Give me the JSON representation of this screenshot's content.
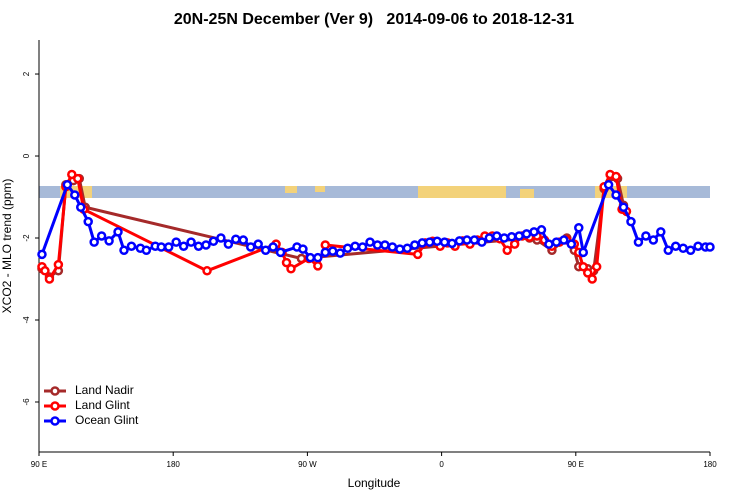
{
  "chart_data": {
    "type": "line",
    "title": "20N-25N December (Ver 9)   2014-09-06 to 2018-12-31",
    "xlabel": "Longitude",
    "ylabel": "XCO2 - MLO trend (ppm)",
    "xlim": [
      90,
      540
    ],
    "ylim": [
      -7.22,
      2.83
    ],
    "xticks": [
      {
        "value": 90,
        "label": "90 E"
      },
      {
        "value": 180,
        "label": "180"
      },
      {
        "value": 270,
        "label": "90 W"
      },
      {
        "value": 360,
        "label": "0"
      },
      {
        "value": 450,
        "label": "90 E"
      },
      {
        "value": 540,
        "label": "180"
      }
    ],
    "yticks": [
      -6,
      -4,
      -2,
      0,
      2
    ],
    "legend": "bottom-left",
    "series": [
      {
        "name": "Land Nadir",
        "color": "#a52a2a",
        "x": [
          92,
          97,
          103,
          108,
          113,
          117,
          121,
          266,
          419,
          424,
          434,
          444,
          449,
          452,
          458,
          462,
          469,
          474,
          478,
          482
        ],
        "values": [
          -2.75,
          -2.95,
          -2.8,
          -0.7,
          -0.6,
          -0.55,
          -1.25,
          -2.5,
          -2.0,
          -2.05,
          -2.3,
          -2.0,
          -2.3,
          -2.7,
          -2.75,
          -2.8,
          -0.8,
          -0.5,
          -0.55,
          -1.2
        ]
      },
      {
        "name": "Land Glint",
        "color": "#ff0000",
        "x": [
          92,
          94,
          97,
          103,
          108,
          112,
          116,
          120,
          202.7,
          249,
          253,
          256,
          259,
          271,
          277,
          282,
          344,
          349,
          354,
          359,
          364,
          369,
          374,
          379,
          384,
          389,
          394,
          399,
          404,
          409,
          414,
          419,
          424,
          429,
          434,
          439,
          444,
          449,
          452,
          455,
          458,
          461,
          464,
          469,
          473,
          477,
          481,
          484
        ],
        "values": [
          -2.7,
          -2.8,
          -3.0,
          -2.65,
          -0.75,
          -0.45,
          -0.55,
          -1.3,
          -2.8,
          -2.15,
          -2.35,
          -2.6,
          -2.75,
          -2.5,
          -2.68,
          -2.17,
          -2.4,
          -2.12,
          -2.08,
          -2.2,
          -2.12,
          -2.2,
          -2.07,
          -2.15,
          -2.05,
          -1.95,
          -1.95,
          -2.02,
          -2.3,
          -2.15,
          -1.95,
          -1.98,
          -1.95,
          -2.05,
          -2.2,
          -2.1,
          -2.05,
          -2.15,
          -2.35,
          -2.7,
          -2.85,
          -3.0,
          -2.7,
          -0.75,
          -0.45,
          -0.5,
          -1.3,
          -1.35
        ]
      },
      {
        "name": "Ocean Glint",
        "color": "#0000ff",
        "x": [
          92,
          109,
          114,
          118,
          123,
          127,
          132,
          137,
          143,
          147,
          152,
          158,
          162,
          168,
          172,
          177,
          182,
          187,
          192,
          197,
          202,
          207,
          212,
          217,
          222,
          227,
          232,
          237,
          242,
          247,
          252,
          263,
          267,
          272,
          277,
          282,
          287,
          292,
          297,
          302,
          307,
          312,
          317,
          322,
          327,
          332,
          337,
          342,
          347,
          352,
          357,
          362,
          367,
          372,
          377,
          382,
          387,
          392,
          397,
          402,
          407,
          412,
          417,
          422,
          427,
          432,
          437,
          442,
          447,
          452,
          455,
          472,
          477,
          482,
          487,
          492,
          497,
          502,
          507,
          512,
          517,
          522,
          527,
          532,
          537,
          540
        ],
        "values": [
          -2.4,
          -0.7,
          -0.95,
          -1.25,
          -1.6,
          -2.1,
          -1.95,
          -2.07,
          -1.85,
          -2.3,
          -2.2,
          -2.25,
          -2.3,
          -2.2,
          -2.22,
          -2.22,
          -2.1,
          -2.2,
          -2.1,
          -2.2,
          -2.17,
          -2.08,
          -2.0,
          -2.15,
          -2.03,
          -2.05,
          -2.22,
          -2.15,
          -2.3,
          -2.22,
          -2.35,
          -2.22,
          -2.27,
          -2.48,
          -2.48,
          -2.35,
          -2.32,
          -2.37,
          -2.25,
          -2.2,
          -2.22,
          -2.1,
          -2.17,
          -2.17,
          -2.22,
          -2.27,
          -2.25,
          -2.17,
          -2.12,
          -2.1,
          -2.08,
          -2.1,
          -2.13,
          -2.07,
          -2.05,
          -2.05,
          -2.1,
          -2.0,
          -1.95,
          -2.0,
          -1.97,
          -1.95,
          -1.9,
          -1.85,
          -1.8,
          -2.15,
          -2.1,
          -2.05,
          -2.15,
          -1.75,
          -2.35,
          -0.7,
          -0.95,
          -1.25,
          -1.6,
          -2.1,
          -1.95,
          -2.05,
          -1.85,
          -2.3,
          -2.2,
          -2.25,
          -2.3,
          -2.2,
          -2.22,
          -2.22
        ]
      }
    ]
  }
}
